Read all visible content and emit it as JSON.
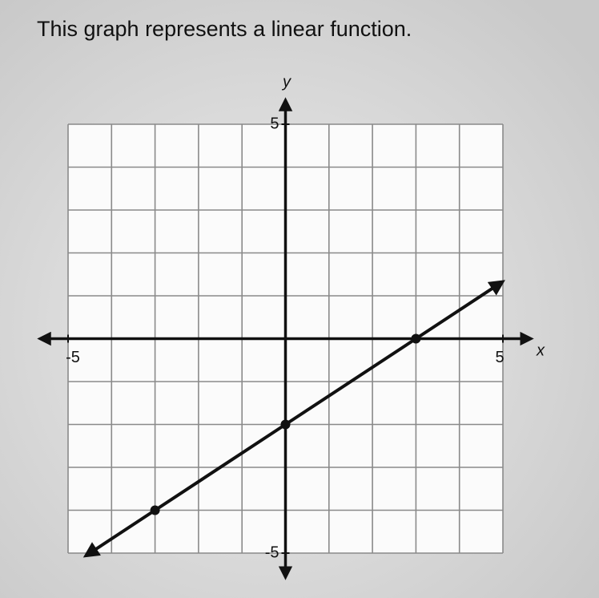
{
  "chart_data": {
    "type": "line",
    "title": "This graph represents a linear function.",
    "x_label": "x",
    "y_label": "y",
    "xlim": [
      -5,
      5
    ],
    "ylim": [
      -5,
      5
    ],
    "xticks": [
      -5,
      5
    ],
    "yticks": [
      -5,
      5
    ],
    "grid": true,
    "x": [
      -3,
      0,
      3
    ],
    "series": [
      {
        "color": "#111111",
        "values": [
          -4,
          -2,
          0
        ]
      }
    ]
  }
}
